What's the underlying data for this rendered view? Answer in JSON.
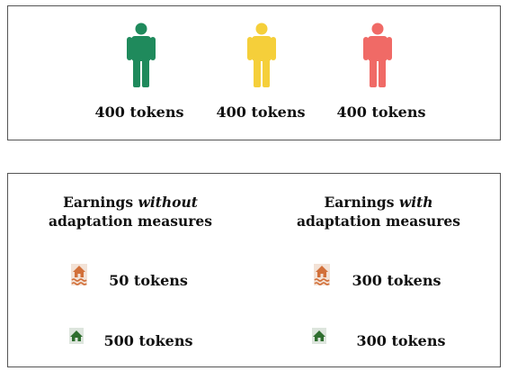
{
  "players": [
    {
      "color": "green",
      "hex": "#1f8a5c",
      "tokens": "400 tokens"
    },
    {
      "color": "yellow",
      "hex": "#f5cf3a",
      "tokens": "400 tokens"
    },
    {
      "color": "red",
      "hex": "#f06a66",
      "tokens": "400 tokens"
    }
  ],
  "scenarios": {
    "without": {
      "heading_prefix": "Earnings ",
      "heading_emphasis": "without",
      "heading_suffix": "adaptation measures",
      "flood_tokens": "50 tokens",
      "home_tokens": "500 tokens"
    },
    "with": {
      "heading_prefix": "Earnings ",
      "heading_emphasis": "with",
      "heading_suffix": "adaptation measures",
      "flood_tokens": "300 tokens",
      "home_tokens": "300 tokens"
    }
  },
  "icons": {
    "flood": "flooded-house-icon",
    "home": "safe-house-icon"
  },
  "colors": {
    "flood_icon": "#d2703a",
    "home_icon": "#2f6e2f",
    "border": "#555555"
  }
}
